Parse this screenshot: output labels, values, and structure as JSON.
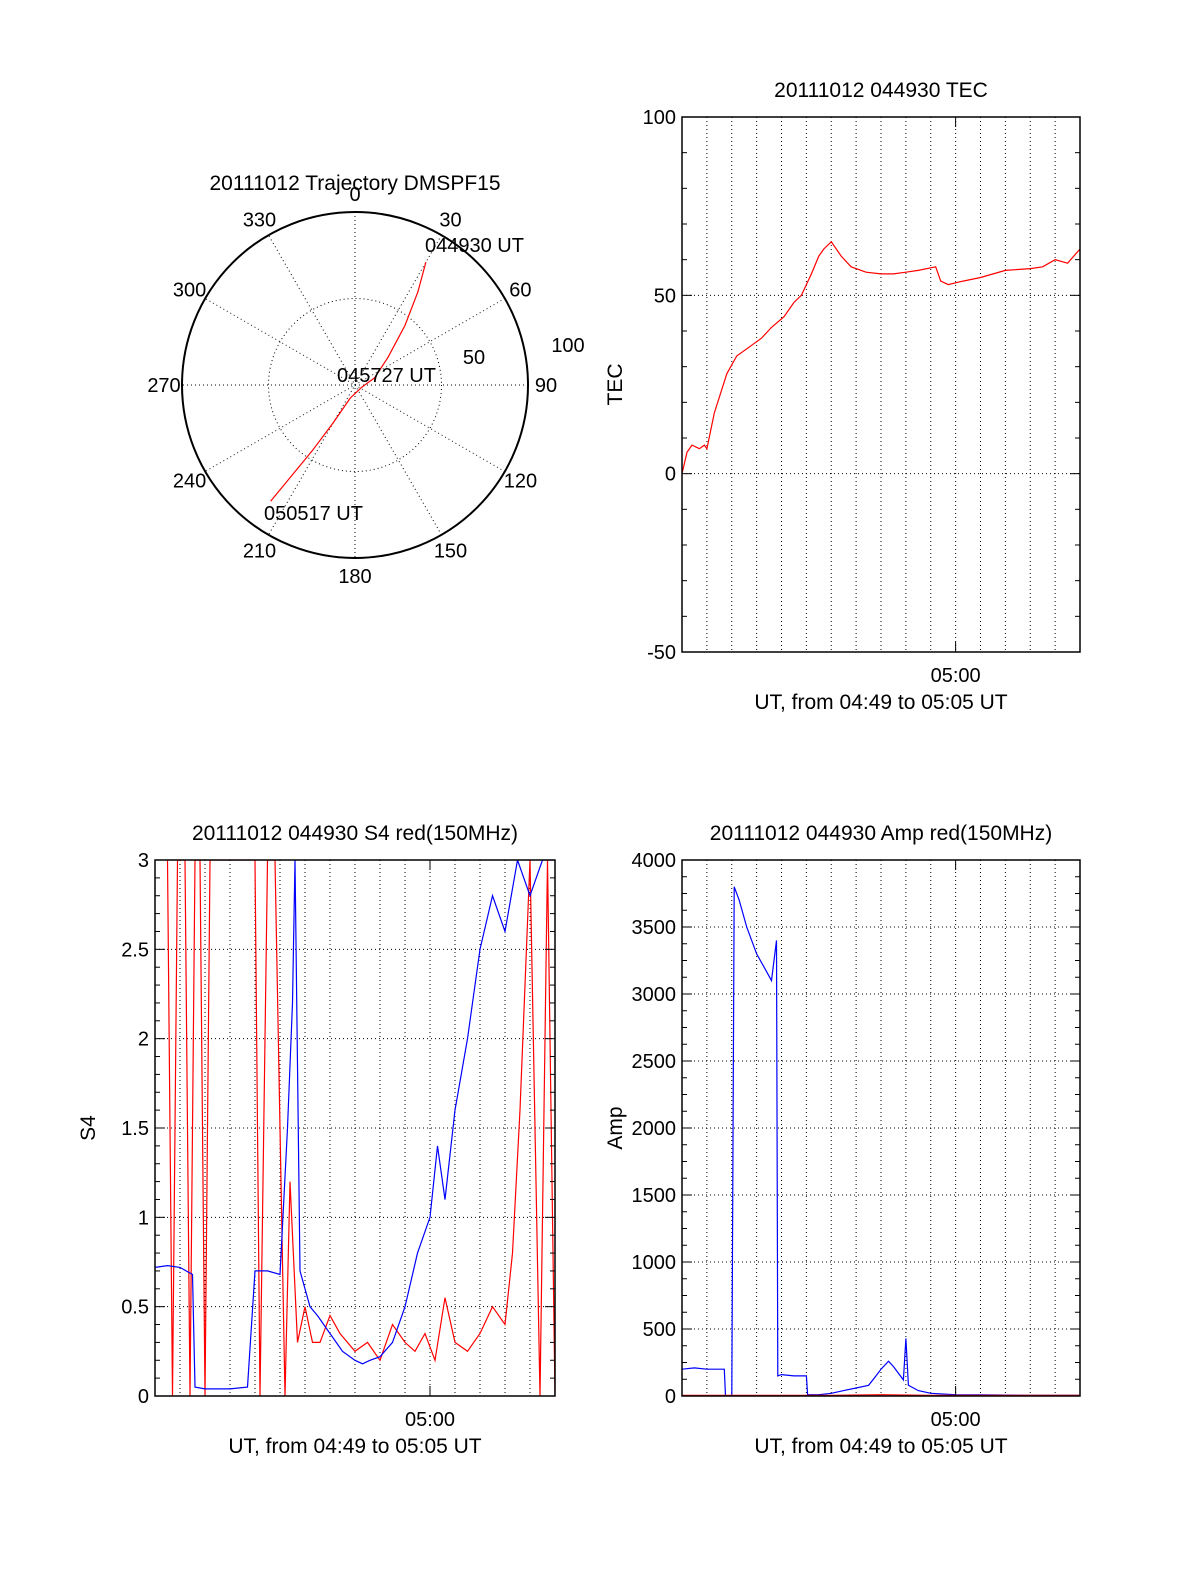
{
  "colors": {
    "red": "#ff0000",
    "blue": "#0000ff",
    "axis": "#000000",
    "grid": "#000000",
    "background": "#ffffff"
  },
  "chart_data": [
    {
      "id": "trajectory",
      "type": "polar",
      "title": "20111012 Trajectory DMSPF15",
      "angle_labels": [
        "0",
        "30",
        "60",
        "90",
        "120",
        "150",
        "180",
        "210",
        "240",
        "270",
        "300",
        "330"
      ],
      "radial_labels": [
        "50",
        "100"
      ],
      "radial_range": [
        0,
        100
      ],
      "grid": true,
      "track": {
        "color": "red",
        "points_az_r": [
          [
            30,
            82
          ],
          [
            34,
            65
          ],
          [
            40,
            45
          ],
          [
            50,
            25
          ],
          [
            70,
            12
          ],
          [
            110,
            4
          ],
          [
            200,
            8
          ],
          [
            210,
            25
          ],
          [
            213,
            45
          ],
          [
            215,
            65
          ],
          [
            216,
            83
          ]
        ]
      },
      "annotations": [
        "044930 UT",
        "045727 UT",
        "050517 UT"
      ]
    },
    {
      "id": "tec",
      "type": "line",
      "title": "20111012 044930 TEC",
      "xlabel": "UT, from 04:49 to 05:05 UT",
      "ylabel": "TEC",
      "xlim": [
        0,
        16
      ],
      "ylim": [
        -50,
        100
      ],
      "yticks": [
        "100",
        "50",
        "0",
        "-50"
      ],
      "xtick_label": "05:00",
      "xtick_position": 11,
      "grid": true,
      "series": [
        {
          "color": "red",
          "x": [
            0.0,
            0.2,
            0.4,
            0.7,
            0.9,
            1.0,
            1.3,
            1.8,
            2.2,
            2.8,
            3.2,
            3.6,
            4.1,
            4.5,
            4.8,
            5.2,
            5.5,
            5.7,
            6.0,
            6.4,
            6.8,
            7.4,
            8.0,
            8.5,
            9.0,
            9.5,
            10.2,
            10.4,
            10.7,
            11.3,
            12.0,
            13.0,
            14.0,
            14.5,
            15.0,
            15.5,
            16.0
          ],
          "y": [
            0,
            6,
            8,
            7,
            8,
            7,
            17,
            28,
            33,
            36,
            38,
            41,
            44,
            48,
            50,
            56,
            61,
            63,
            65,
            61,
            58,
            56.5,
            56,
            56,
            56.5,
            57,
            58,
            54,
            53,
            54,
            55,
            57,
            57.5,
            58,
            60,
            59,
            63
          ]
        }
      ]
    },
    {
      "id": "s4",
      "type": "line",
      "title": "20111012 044930 S4 red(150MHz)",
      "xlabel": "UT, from 04:49 to 05:05 UT",
      "ylabel": "S4",
      "xlim": [
        0,
        16
      ],
      "ylim": [
        0,
        3
      ],
      "yticks": [
        "3",
        "2.5",
        "2",
        "1.5",
        "1",
        "0.5",
        "0"
      ],
      "xtick_label": "05:00",
      "xtick_position": 11,
      "grid": true,
      "series": [
        {
          "color": "red",
          "x": [
            0.5,
            0.7,
            0.9,
            1.2,
            1.4,
            1.6,
            1.8,
            2.0,
            2.2,
            4.0,
            4.2,
            4.5,
            4.8,
            5.2,
            5.4,
            5.7,
            6.0,
            6.3,
            6.6,
            7.0,
            7.4,
            8.0,
            8.5,
            9.0,
            9.5,
            10.0,
            10.4,
            10.8,
            11.2,
            11.6,
            12.0,
            12.5,
            13.0,
            13.5,
            14.0,
            14.3,
            14.6,
            15.0,
            15.4,
            15.7,
            16.0
          ],
          "y": [
            3,
            0,
            3,
            3,
            0,
            3,
            3,
            0,
            3,
            3,
            0,
            3,
            3,
            0,
            1.2,
            0.3,
            0.5,
            0.3,
            0.3,
            0.45,
            0.35,
            0.25,
            0.3,
            0.2,
            0.4,
            0.3,
            0.25,
            0.35,
            0.2,
            0.55,
            0.3,
            0.25,
            0.35,
            0.5,
            0.4,
            0.8,
            1.6,
            3,
            0,
            3,
            0
          ]
        },
        {
          "color": "blue",
          "x": [
            0.0,
            0.5,
            1.0,
            1.5,
            1.6,
            2.0,
            2.5,
            3.0,
            3.7,
            4.0,
            4.5,
            5.0,
            5.3,
            5.5,
            5.6,
            5.8,
            6.2,
            6.5,
            7.0,
            7.5,
            8.0,
            8.3,
            8.6,
            9.0,
            9.5,
            10.0,
            10.5,
            11.0,
            11.3,
            11.6,
            12.0,
            12.5,
            13.0,
            13.5,
            14.0,
            14.5,
            15.0,
            15.5,
            16.0
          ],
          "y": [
            0.72,
            0.73,
            0.72,
            0.68,
            0.05,
            0.04,
            0.04,
            0.04,
            0.05,
            0.7,
            0.7,
            0.68,
            1.5,
            2.2,
            3,
            0.7,
            0.5,
            0.45,
            0.35,
            0.25,
            0.2,
            0.18,
            0.2,
            0.22,
            0.3,
            0.5,
            0.8,
            1.0,
            1.4,
            1.1,
            1.6,
            2.0,
            2.5,
            2.8,
            2.6,
            3,
            2.8,
            3,
            3
          ]
        }
      ]
    },
    {
      "id": "amp",
      "type": "line",
      "title": "20111012 044930 Amp red(150MHz)",
      "xlabel": "UT, from 04:49 to 05:05 UT",
      "ylabel": "Amp",
      "xlim": [
        0,
        16
      ],
      "ylim": [
        0,
        4000
      ],
      "yticks": [
        "4000",
        "3500",
        "3000",
        "2500",
        "2000",
        "1500",
        "1000",
        "500",
        "0"
      ],
      "xtick_label": "05:00",
      "xtick_position": 11,
      "grid": true,
      "series": [
        {
          "color": "blue",
          "x": [
            0.0,
            0.5,
            1.0,
            1.7,
            1.75,
            2.0,
            2.1,
            2.3,
            2.6,
            3.0,
            3.3,
            3.6,
            3.8,
            3.85,
            4.0,
            4.5,
            5.0,
            5.05,
            5.5,
            6.0,
            6.5,
            7.0,
            7.5,
            7.8,
            8.0,
            8.3,
            8.5,
            8.9,
            9.0,
            9.1,
            9.5,
            10.0,
            11.0,
            12.0,
            14.0,
            16.0
          ],
          "y": [
            200,
            210,
            200,
            200,
            0,
            0,
            3800,
            3700,
            3500,
            3300,
            3200,
            3100,
            3400,
            150,
            160,
            150,
            150,
            10,
            10,
            20,
            40,
            60,
            80,
            150,
            200,
            260,
            220,
            120,
            430,
            80,
            40,
            20,
            10,
            8,
            5,
            5
          ]
        },
        {
          "color": "red",
          "x": [
            0,
            2,
            4,
            6,
            8,
            10,
            12,
            16
          ],
          "y": [
            5,
            5,
            5,
            5,
            10,
            5,
            5,
            5
          ]
        }
      ]
    }
  ]
}
